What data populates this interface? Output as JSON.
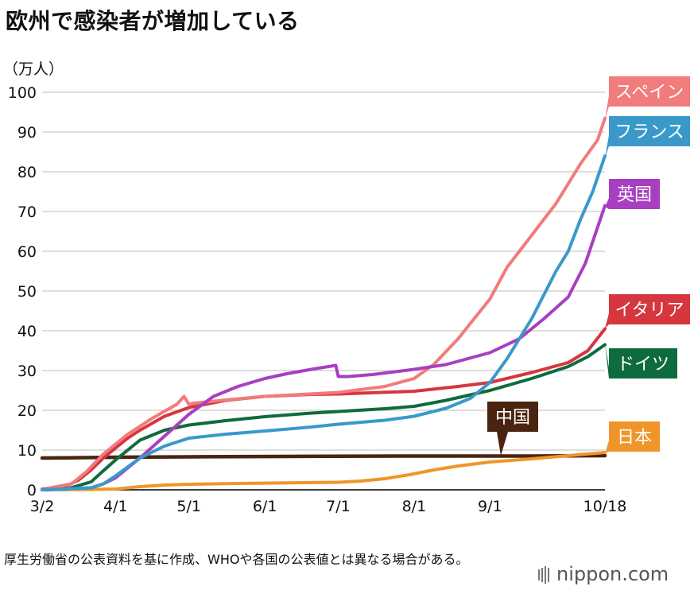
{
  "title": "欧州で感染者が増加している",
  "unit_label": "（万人）",
  "footnote": "厚生労働省の公表資料を基に作成、WHOや各国の公表値とは異なる場合がある。",
  "brand": "nippon.com",
  "chart_data": {
    "type": "line",
    "title": "欧州で感染者が増加している",
    "xlabel": "",
    "ylabel": "（万人）",
    "ylim": [
      0,
      100
    ],
    "xlim": [
      0,
      230
    ],
    "grid": true,
    "yticks": [
      0,
      10,
      20,
      30,
      40,
      50,
      60,
      70,
      80,
      90,
      100
    ],
    "xticks": [
      {
        "label": "3/2",
        "day": 0
      },
      {
        "label": "4/1",
        "day": 30
      },
      {
        "label": "5/1",
        "day": 60
      },
      {
        "label": "6/1",
        "day": 91
      },
      {
        "label": "7/1",
        "day": 121
      },
      {
        "label": "8/1",
        "day": 152
      },
      {
        "label": "9/1",
        "day": 183
      },
      {
        "label": "10/18",
        "day": 230
      }
    ],
    "series": [
      {
        "name": "中国",
        "color": "#4a2410",
        "x": [
          0,
          10,
          30,
          60,
          100,
          150,
          200,
          230
        ],
        "y": [
          8.0,
          8.05,
          8.2,
          8.3,
          8.4,
          8.5,
          8.5,
          8.6
        ]
      },
      {
        "name": "日本",
        "color": "#f0952a",
        "x": [
          0,
          20,
          30,
          40,
          50,
          60,
          80,
          100,
          121,
          130,
          140,
          150,
          160,
          170,
          183,
          200,
          215,
          230
        ],
        "y": [
          0.02,
          0.1,
          0.2,
          0.8,
          1.2,
          1.4,
          1.6,
          1.75,
          1.9,
          2.2,
          2.8,
          3.8,
          5.0,
          6.0,
          7.0,
          7.8,
          8.6,
          9.4
        ]
      },
      {
        "name": "ドイツ",
        "color": "#0e6b3d",
        "x": [
          0,
          10,
          20,
          25,
          30,
          35,
          40,
          50,
          60,
          75,
          91,
          110,
          121,
          140,
          152,
          165,
          183,
          200,
          215,
          223,
          230
        ],
        "y": [
          0.01,
          0.2,
          2.0,
          4.8,
          7.5,
          10.0,
          12.5,
          15.0,
          16.3,
          17.4,
          18.4,
          19.3,
          19.7,
          20.4,
          21.0,
          22.5,
          25.0,
          28.0,
          31.0,
          33.5,
          36.5
        ]
      },
      {
        "name": "イタリア",
        "color": "#d6363e",
        "x": [
          0,
          10,
          15,
          20,
          25,
          30,
          35,
          40,
          50,
          60,
          75,
          91,
          110,
          121,
          152,
          170,
          183,
          200,
          215,
          223,
          230
        ],
        "y": [
          0.2,
          1.0,
          2.5,
          5.0,
          8.0,
          10.5,
          13.0,
          15.0,
          18.5,
          20.7,
          22.5,
          23.5,
          24.0,
          24.1,
          24.8,
          26.0,
          27.0,
          29.5,
          32.0,
          35.0,
          40.5
        ]
      },
      {
        "name": "スペイン",
        "color": "#f27b7b",
        "x": [
          0,
          12,
          18,
          25,
          30,
          35,
          45,
          55,
          58,
          60,
          62,
          75,
          91,
          121,
          140,
          152,
          160,
          170,
          183,
          190,
          200,
          210,
          220,
          227,
          230
        ],
        "y": [
          0.1,
          1.5,
          4.5,
          9.0,
          11.5,
          14.0,
          18.0,
          21.5,
          23.5,
          21.5,
          21.8,
          22.6,
          23.5,
          24.5,
          26.0,
          28.0,
          31.5,
          38.0,
          48.0,
          56.0,
          64.0,
          72.0,
          82.0,
          88.0,
          93.5
        ]
      },
      {
        "name": "英国",
        "color": "#a83fc0",
        "x": [
          0,
          20,
          25,
          30,
          35,
          40,
          50,
          60,
          70,
          80,
          91,
          100,
          110,
          120,
          121,
          125,
          135,
          152,
          165,
          183,
          195,
          205,
          215,
          222,
          230
        ],
        "y": [
          0.0,
          0.5,
          1.5,
          3.0,
          5.5,
          8.0,
          13.5,
          19.0,
          23.5,
          26.0,
          28.0,
          29.2,
          30.3,
          31.3,
          28.5,
          28.5,
          29.0,
          30.3,
          31.5,
          34.5,
          38.0,
          43.0,
          48.5,
          57.0,
          71.5
        ]
      },
      {
        "name": "フランス",
        "color": "#3a99c9",
        "x": [
          0,
          20,
          25,
          30,
          40,
          50,
          60,
          75,
          91,
          110,
          121,
          140,
          152,
          165,
          175,
          183,
          190,
          200,
          210,
          215,
          220,
          225,
          230
        ],
        "y": [
          0.0,
          0.5,
          1.5,
          3.5,
          8.0,
          11.0,
          13.0,
          14.0,
          14.8,
          15.8,
          16.5,
          17.5,
          18.5,
          20.5,
          23.0,
          27.0,
          33.0,
          43.0,
          55.0,
          60.0,
          68.0,
          75.0,
          84.0
        ]
      }
    ],
    "labels": [
      {
        "series": "スペイン",
        "text": "スペイン"
      },
      {
        "series": "フランス",
        "text": "フランス"
      },
      {
        "series": "英国",
        "text": "英国"
      },
      {
        "series": "イタリア",
        "text": "イタリア"
      },
      {
        "series": "ドイツ",
        "text": "ドイツ"
      },
      {
        "series": "中国",
        "text": "中国"
      },
      {
        "series": "日本",
        "text": "日本"
      }
    ]
  }
}
